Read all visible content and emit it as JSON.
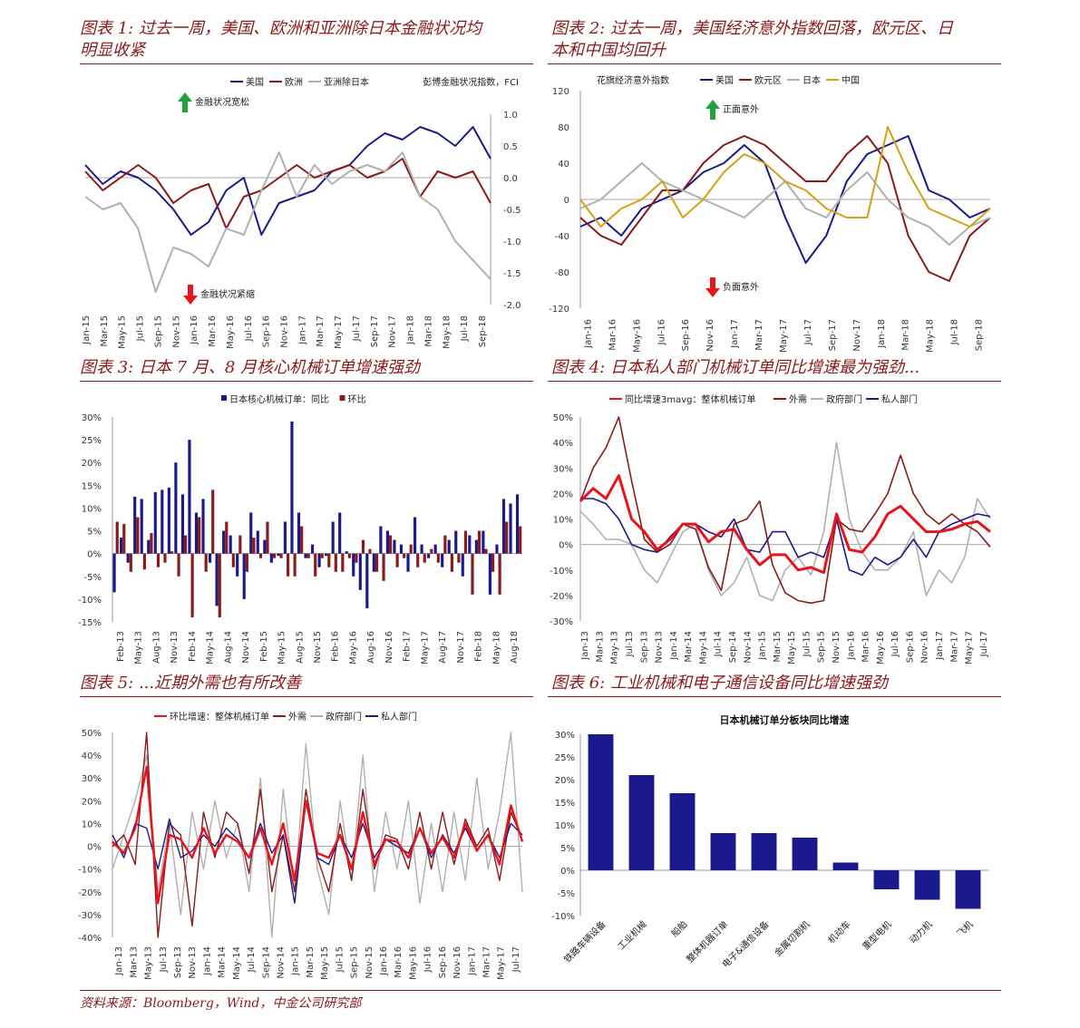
{
  "panels": {
    "p1": {
      "title_line1": "图表 1:  过去一周，美国、欧洲和亚洲除日本金融状况均",
      "title_line2": "明显收紧"
    },
    "p2": {
      "title_line1": "图表 2:  过去一周，美国经济意外指数回落，欧元区、日",
      "title_line2": "本和中国均回升"
    },
    "p3": {
      "title_line1": "图表 3:  日本 7 月、8 月核心机械订单增速强劲"
    },
    "p4": {
      "title_line1": "图表 4:  日本私人部门机械订单同比增速最为强劲..."
    },
    "p5": {
      "title_line1": "图表 5: ...近期外需也有所改善"
    },
    "p6": {
      "title_line1": "图表 6:  工业机械和电子通信设备同比增速强劲"
    }
  },
  "footnote": "资料来源：Bloomberg，Wind，中金公司研究部",
  "colors": {
    "navy": "#1a1a8c",
    "maroon": "#8b1a1a",
    "grey": "#b0b0b0",
    "gold": "#d4a017",
    "red": "#e8141b",
    "green": "#1fa33a"
  },
  "chart_data": [
    {
      "id": "fci",
      "type": "line",
      "legend": [
        "美国",
        "欧洲",
        "亚洲除日本"
      ],
      "axis_title_right": "彭博金融状况指数，FCI",
      "annotation_up": "金融状况宽松",
      "annotation_down": "金融状况紧缩",
      "ylim": [
        -2.0,
        1.0
      ],
      "yticks": [
        "1.0",
        "0.5",
        "0.0",
        "-0.5",
        "-1.0",
        "-1.5",
        "-2.0"
      ],
      "xticks": [
        "Jan-15",
        "Mar-15",
        "May-15",
        "Jul-15",
        "Sep-15",
        "Nov-15",
        "Jan-16",
        "Mar-16",
        "May-16",
        "Jul-16",
        "Sep-16",
        "Nov-16",
        "Jan-17",
        "Mar-17",
        "May-17",
        "Jul-17",
        "Sep-17",
        "Nov-17",
        "Jan-18",
        "Mar-18",
        "May-18",
        "Jul-18",
        "Sep-18"
      ],
      "series": [
        {
          "name": "美国",
          "values": [
            0.2,
            -0.1,
            0.1,
            0.0,
            -0.2,
            -0.5,
            -0.9,
            -0.7,
            -0.2,
            0.0,
            -0.9,
            -0.4,
            -0.3,
            -0.2,
            0.1,
            0.2,
            0.5,
            0.7,
            0.6,
            0.8,
            0.7,
            0.5,
            0.8,
            0.3
          ]
        },
        {
          "name": "欧洲",
          "values": [
            0.1,
            -0.2,
            0.0,
            0.2,
            0.0,
            -0.4,
            -0.2,
            -0.1,
            -0.8,
            -0.3,
            -0.2,
            0.0,
            0.2,
            0.0,
            0.1,
            0.2,
            0.0,
            0.1,
            0.3,
            -0.3,
            0.1,
            0.0,
            0.1,
            -0.4
          ]
        },
        {
          "name": "亚洲除日本",
          "values": [
            -0.3,
            -0.5,
            -0.4,
            -0.8,
            -1.8,
            -1.1,
            -1.2,
            -1.4,
            -0.8,
            -0.9,
            -0.2,
            0.4,
            -0.3,
            0.2,
            -0.1,
            0.1,
            0.2,
            0.1,
            0.4,
            -0.3,
            -0.5,
            -1.0,
            -1.3,
            -1.6
          ]
        }
      ]
    },
    {
      "id": "citi",
      "type": "line",
      "axis_title": "花旗经济意外指数",
      "legend": [
        "美国",
        "欧元区",
        "日本",
        "中国"
      ],
      "annotation_up": "正面意外",
      "annotation_down": "负面意外",
      "ylim": [
        -120,
        120
      ],
      "yticks": [
        "120",
        "80",
        "40",
        "0",
        "-40",
        "-80",
        "-120"
      ],
      "xticks": [
        "Jan-16",
        "Mar-16",
        "May-16",
        "Jul-16",
        "Sep-16",
        "Nov-16",
        "Jan-17",
        "Mar-17",
        "May-17",
        "Jul-17",
        "Sep-17",
        "Nov-17",
        "Jan-18",
        "Mar-18",
        "May-18",
        "Jul-18",
        "Sep-18"
      ],
      "series": [
        {
          "name": "美国",
          "values": [
            -30,
            -20,
            -40,
            -10,
            0,
            10,
            30,
            40,
            60,
            40,
            -20,
            -70,
            -40,
            20,
            50,
            60,
            70,
            10,
            0,
            -20,
            -10
          ]
        },
        {
          "name": "欧元区",
          "values": [
            -20,
            -40,
            -50,
            -20,
            10,
            10,
            40,
            60,
            70,
            60,
            40,
            20,
            20,
            50,
            70,
            40,
            -40,
            -80,
            -90,
            -40,
            -20
          ]
        },
        {
          "name": "日本",
          "values": [
            -10,
            0,
            20,
            40,
            20,
            10,
            0,
            -10,
            -20,
            0,
            20,
            -10,
            -20,
            10,
            30,
            0,
            -20,
            -30,
            -50,
            -30,
            -20
          ]
        },
        {
          "name": "中国",
          "values": [
            0,
            -30,
            -10,
            0,
            20,
            -20,
            0,
            30,
            50,
            40,
            20,
            10,
            -10,
            -20,
            -20,
            80,
            30,
            -10,
            -20,
            -30,
            -10
          ]
        }
      ]
    },
    {
      "id": "core-orders",
      "type": "bar",
      "legend": [
        "日本核心机械订单：同比",
        "环比"
      ],
      "ylim": [
        -15,
        30
      ],
      "yticks": [
        "30%",
        "25%",
        "20%",
        "15%",
        "10%",
        "5%",
        "0%",
        "-5%",
        "-10%",
        "-15%"
      ],
      "xticks": [
        "Feb-13",
        "May-13",
        "Aug-13",
        "Nov-13",
        "Feb-14",
        "May-14",
        "Aug-14",
        "Nov-14",
        "Feb-15",
        "May-15",
        "Aug-15",
        "Nov-15",
        "Feb-16",
        "May-16",
        "Aug-16",
        "Nov-16",
        "Feb-17",
        "May-17",
        "Aug-17",
        "Nov-17",
        "Feb-18",
        "May-18",
        "Aug-18"
      ],
      "series": [
        {
          "name": "日本核心机械订单：同比",
          "values": [
            -8.5,
            3.5,
            -2,
            12.5,
            12,
            3,
            13.5,
            14,
            14.5,
            20,
            13,
            25,
            9,
            12,
            -2,
            -11.5,
            5,
            4,
            -5,
            -10,
            9,
            5,
            3,
            -2,
            -0.5,
            7,
            29,
            9,
            -1,
            2,
            -3,
            -0.5,
            7,
            9,
            0.5,
            -5,
            -8,
            -12,
            -4,
            6,
            5,
            3,
            2,
            -4,
            8,
            2,
            -1,
            2,
            -3,
            3,
            5,
            -5,
            4,
            3,
            5,
            -9,
            2,
            12,
            11,
            13
          ]
        },
        {
          "name": "环比",
          "values": [
            7,
            6.5,
            -4,
            8,
            -3.5,
            4.5,
            -3,
            -2,
            0.5,
            -5,
            4,
            -14,
            8,
            -4,
            14,
            -14,
            7,
            -3,
            4,
            -4,
            3.5,
            -1,
            7,
            -1,
            -1,
            -5,
            -5,
            6,
            -1,
            -5,
            -1,
            -3,
            -4,
            -4,
            -1,
            -2,
            3,
            1,
            -4,
            -6,
            4,
            -3,
            -1,
            2,
            -3,
            -2,
            1,
            -2,
            4,
            -4,
            -2,
            5,
            -9,
            5,
            1,
            -4,
            -9,
            7,
            0,
            6
          ]
        }
      ]
    },
    {
      "id": "orders-sector",
      "type": "line",
      "legend": [
        "同比增速3mavg：整体机械订单",
        "外需",
        "政府部门",
        "私人部门"
      ],
      "ylim": [
        -30,
        50
      ],
      "yticks": [
        "50%",
        "40%",
        "30%",
        "20%",
        "10%",
        "0%",
        "-10%",
        "-20%",
        "-30%"
      ],
      "xticks": [
        "Jan-13",
        "Mar-13",
        "May-13",
        "Jul-13",
        "Sep-13",
        "Nov-13",
        "Jan-14",
        "Mar-14",
        "May-14",
        "Jul-14",
        "Sep-14",
        "Nov-14",
        "Jan-15",
        "Mar-15",
        "May-15",
        "Jul-15",
        "Sep-15",
        "Nov-15",
        "Jan-16",
        "Mar-16",
        "May-16",
        "Jul-16",
        "Sep-16",
        "Nov-16",
        "Jan-17",
        "Mar-17",
        "May-17",
        "Jul-17"
      ],
      "series": [
        {
          "name": "同比增速3mavg：整体机械订单",
          "values": [
            17,
            22,
            18,
            27,
            10,
            5,
            -2,
            2,
            8,
            8,
            1,
            5,
            6,
            -2,
            -8,
            -4,
            -4,
            -10,
            -9,
            -11,
            12,
            -2,
            -3,
            3,
            12,
            15,
            10,
            5,
            5,
            6,
            8,
            9,
            5
          ]
        },
        {
          "name": "外需",
          "values": [
            17,
            30,
            38,
            50,
            25,
            2,
            -3,
            0,
            8,
            6,
            -9,
            -18,
            8,
            10,
            17,
            -8,
            -19,
            -22,
            -23,
            -22,
            10,
            6,
            5,
            12,
            20,
            35,
            20,
            12,
            8,
            12,
            8,
            5,
            -1
          ]
        },
        {
          "name": "政府部门",
          "values": [
            13,
            8,
            2,
            2,
            0,
            -10,
            -15,
            -5,
            5,
            8,
            -10,
            -20,
            -15,
            -5,
            -20,
            -22,
            -10,
            -5,
            -12,
            5,
            40,
            10,
            -3,
            -10,
            -10,
            -5,
            5,
            -20,
            -10,
            -15,
            -5,
            18,
            10
          ]
        },
        {
          "name": "私人部门",
          "values": [
            18,
            18,
            16,
            10,
            0,
            -2,
            -3,
            3,
            8,
            8,
            5,
            3,
            10,
            -2,
            -3,
            5,
            5,
            -5,
            -3,
            -5,
            10,
            -10,
            -12,
            -5,
            -8,
            -5,
            2,
            -5,
            5,
            8,
            10,
            12,
            11
          ]
        }
      ]
    },
    {
      "id": "orders-mom",
      "type": "line",
      "legend": [
        "环比增速：整体机械订单",
        "外需",
        "政府部门",
        "私人部门"
      ],
      "ylim": [
        -40,
        50
      ],
      "yticks": [
        "50%",
        "40%",
        "30%",
        "20%",
        "10%",
        "0%",
        "-10%",
        "-20%",
        "-30%",
        "-40%"
      ],
      "xticks": [
        "Jan-13",
        "Mar-13",
        "May-13",
        "Jul-13",
        "Sep-13",
        "Nov-13",
        "Jan-14",
        "Mar-14",
        "May-14",
        "Jul-14",
        "Sep-14",
        "Nov-14",
        "Jan-15",
        "Mar-15",
        "May-15",
        "Jul-15",
        "Sep-15",
        "Nov-15",
        "Jan-16",
        "Mar-16",
        "May-16",
        "Jul-16",
        "Sep-16",
        "Nov-16",
        "Jan-17",
        "Mar-17",
        "May-17",
        "Jul-17"
      ],
      "series": [
        {
          "name": "环比增速：整体机械订单",
          "values": [
            2,
            -3,
            8,
            35,
            -25,
            5,
            3,
            -5,
            8,
            -3,
            5,
            2,
            -5,
            8,
            -8,
            10,
            -15,
            20,
            -3,
            -5,
            5,
            -10,
            15,
            -8,
            3,
            2,
            -5,
            8,
            -3,
            4,
            -5,
            10,
            -2,
            5,
            -8,
            18,
            2
          ]
        },
        {
          "name": "外需",
          "values": [
            0,
            5,
            -8,
            50,
            -40,
            10,
            5,
            -35,
            15,
            -5,
            15,
            10,
            -12,
            25,
            -20,
            5,
            -20,
            25,
            -5,
            -20,
            10,
            -15,
            25,
            -10,
            5,
            3,
            -10,
            15,
            -10,
            15,
            -8,
            12,
            0,
            8,
            -15,
            15,
            3
          ]
        },
        {
          "name": "政府部门",
          "values": [
            -10,
            5,
            20,
            40,
            -20,
            10,
            -30,
            15,
            -10,
            20,
            -5,
            10,
            -20,
            30,
            -40,
            25,
            -20,
            45,
            -10,
            -30,
            20,
            -15,
            40,
            -20,
            15,
            -10,
            20,
            -25,
            10,
            -20,
            15,
            -15,
            30,
            -10,
            15,
            50,
            -20
          ]
        },
        {
          "name": "私人部门",
          "values": [
            5,
            -5,
            10,
            8,
            -10,
            12,
            -5,
            -2,
            5,
            0,
            8,
            3,
            -5,
            10,
            -3,
            5,
            -25,
            20,
            -5,
            -8,
            5,
            -5,
            10,
            -5,
            3,
            0,
            -3,
            8,
            -5,
            5,
            -3,
            8,
            -2,
            5,
            -5,
            10,
            5
          ]
        }
      ]
    },
    {
      "id": "orders-category",
      "type": "bar",
      "title": "日本机械订单分板块同比增速",
      "ylim": [
        -10,
        30
      ],
      "yticks": [
        "30%",
        "25%",
        "20%",
        "15%",
        "10%",
        "5%",
        "0%",
        "-5%",
        "-10%"
      ],
      "categories": [
        "铁路车辆设备",
        "工业机械",
        "船舶",
        "整体机器订单",
        "电子&通信设备",
        "金属切割机",
        "机动车",
        "重型电机",
        "动力机",
        "飞机"
      ],
      "values": [
        30,
        21,
        17,
        8.2,
        8.2,
        7.2,
        1.7,
        -4.2,
        -6.5,
        -8.5
      ]
    }
  ]
}
